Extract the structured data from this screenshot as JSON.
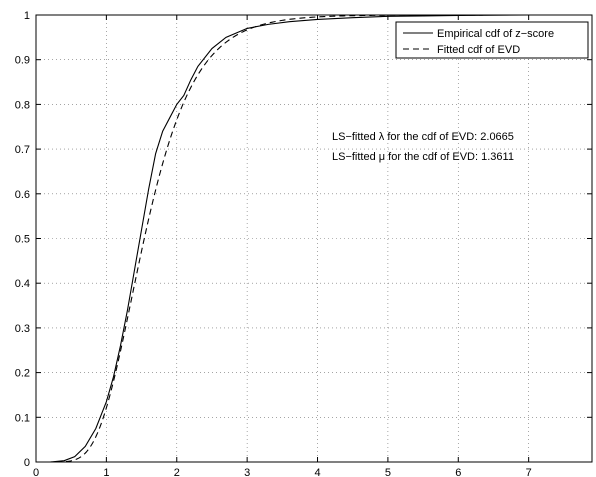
{
  "chart_data": {
    "type": "line",
    "title": "",
    "xlabel": "",
    "ylabel": "",
    "xlim": [
      0,
      7.9
    ],
    "ylim": [
      0,
      1
    ],
    "xticks": [
      0,
      1,
      2,
      3,
      4,
      5,
      6,
      7
    ],
    "yticks": [
      0,
      0.1,
      0.2,
      0.3,
      0.4,
      0.5,
      0.6,
      0.7,
      0.8,
      0.9,
      1
    ],
    "grid": true,
    "legend_position": "top-right",
    "series": [
      {
        "name": "Empirical cdf of z−score",
        "style": "solid",
        "color": "#000000",
        "x": [
          0.0,
          0.2,
          0.4,
          0.55,
          0.7,
          0.85,
          1.0,
          1.1,
          1.2,
          1.3,
          1.4,
          1.5,
          1.6,
          1.7,
          1.8,
          1.9,
          2.0,
          2.1,
          2.2,
          2.3,
          2.5,
          2.7,
          3.0,
          3.3,
          3.6,
          4.0,
          4.5,
          5.0,
          5.5,
          6.0,
          7.0,
          7.9
        ],
        "y": [
          0.0,
          0.0,
          0.003,
          0.012,
          0.035,
          0.075,
          0.135,
          0.19,
          0.26,
          0.34,
          0.43,
          0.52,
          0.61,
          0.69,
          0.74,
          0.77,
          0.8,
          0.82,
          0.855,
          0.885,
          0.925,
          0.95,
          0.97,
          0.979,
          0.985,
          0.99,
          0.994,
          0.997,
          0.998,
          0.999,
          1.0,
          1.0
        ]
      },
      {
        "name": "Fitted cdf of EVD",
        "style": "dashed",
        "color": "#000000",
        "function": "exp(-exp(-lambda*(x-mu)))",
        "lambda": 2.0665,
        "mu": 1.3611
      }
    ],
    "annotations": [
      "LS−fitted λ for the cdf of EVD: 2.0665",
      "LS−fitted μ for the cdf of EVD: 1.3611"
    ],
    "colors": {
      "grid": "#6f6f6f",
      "axes": "#000000",
      "background": "#ffffff"
    }
  }
}
